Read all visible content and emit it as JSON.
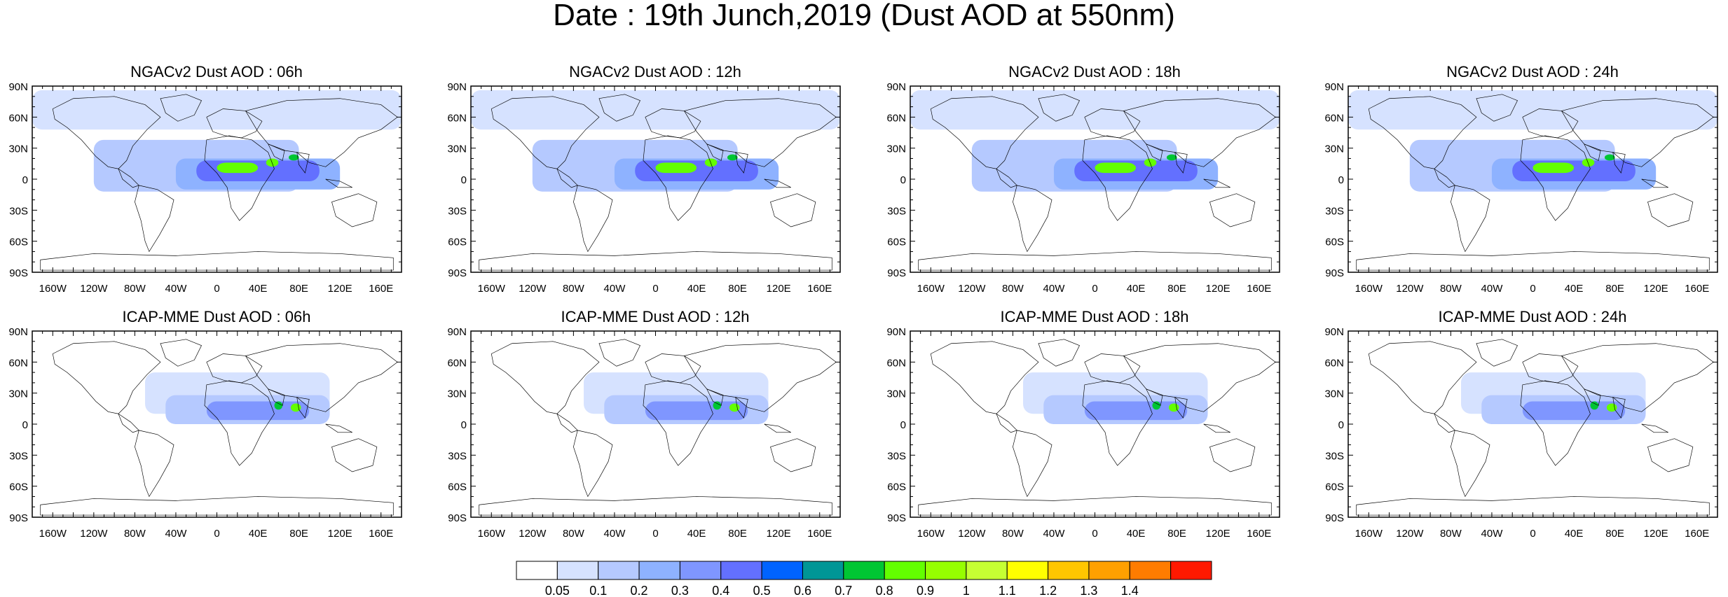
{
  "title": "Date : 19th Junch,2019 (Dust AOD at 550nm)",
  "axes": {
    "lat_ticks": [
      "90N",
      "60N",
      "30N",
      "0",
      "30S",
      "60S",
      "90S"
    ],
    "lon_ticks": [
      "160W",
      "120W",
      "80W",
      "40W",
      "0",
      "40E",
      "80E",
      "120E",
      "160E"
    ]
  },
  "panels": [
    {
      "title": "NGACv2 Dust AOD : 06h",
      "model": "NGACv2",
      "hour": "06h"
    },
    {
      "title": "NGACv2 Dust AOD : 12h",
      "model": "NGACv2",
      "hour": "12h"
    },
    {
      "title": "NGACv2 Dust AOD : 18h",
      "model": "NGACv2",
      "hour": "18h"
    },
    {
      "title": "NGACv2 Dust AOD : 24h",
      "model": "NGACv2",
      "hour": "24h"
    },
    {
      "title": "ICAP-MME Dust AOD : 06h",
      "model": "ICAP-MME",
      "hour": "06h"
    },
    {
      "title": "ICAP-MME Dust AOD : 12h",
      "model": "ICAP-MME",
      "hour": "12h"
    },
    {
      "title": "ICAP-MME Dust AOD : 18h",
      "model": "ICAP-MME",
      "hour": "18h"
    },
    {
      "title": "ICAP-MME Dust AOD : 24h",
      "model": "ICAP-MME",
      "hour": "24h"
    }
  ],
  "colorbar": {
    "labels": [
      "0.05",
      "0.1",
      "0.2",
      "0.3",
      "0.4",
      "0.5",
      "0.6",
      "0.7",
      "0.8",
      "0.9",
      "1",
      "1.1",
      "1.2",
      "1.3",
      "1.4"
    ],
    "colors": [
      "#ffffff",
      "#d6e2ff",
      "#b5c9ff",
      "#8eb2ff",
      "#7f96ff",
      "#6370ff",
      "#0063ff",
      "#009696",
      "#00c633",
      "#63ff00",
      "#96ff00",
      "#c6ff33",
      "#ffff00",
      "#ffc600",
      "#ffa000",
      "#ff7c00",
      "#ff1900"
    ]
  }
}
